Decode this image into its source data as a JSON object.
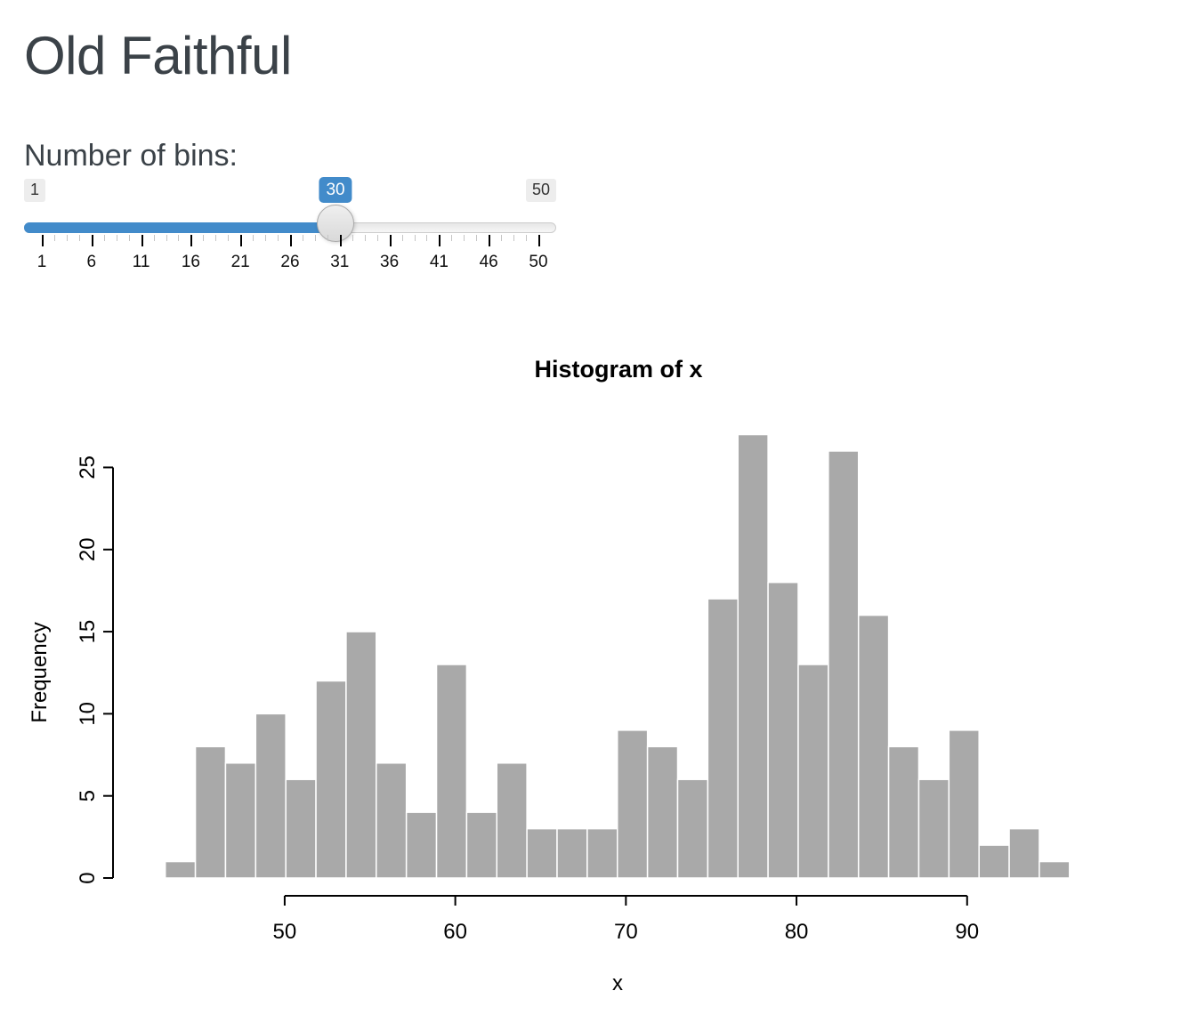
{
  "app": {
    "title": "Old Faithful"
  },
  "slider": {
    "label": "Number of bins:",
    "min": 1,
    "max": 50,
    "value": 30,
    "min_label": "1",
    "max_label": "50",
    "value_label": "30",
    "tick_labels": [
      "1",
      "6",
      "11",
      "16",
      "21",
      "26",
      "31",
      "36",
      "41",
      "46",
      "50"
    ],
    "accent_color": "#428bca"
  },
  "chart_data": {
    "type": "bar",
    "variant": "histogram",
    "title": "Histogram of x",
    "xlabel": "x",
    "ylabel": "Frequency",
    "x_range": [
      43,
      96
    ],
    "n_bins": 30,
    "bin_width": 1.7667,
    "frequencies": [
      1,
      8,
      7,
      10,
      6,
      12,
      15,
      7,
      4,
      13,
      4,
      7,
      3,
      3,
      3,
      9,
      8,
      6,
      17,
      27,
      18,
      13,
      26,
      16,
      8,
      6,
      9,
      2,
      3,
      1
    ],
    "x_ticks": [
      50,
      60,
      70,
      80,
      90
    ],
    "y_ticks": [
      0,
      5,
      10,
      15,
      20,
      25
    ],
    "ylim": [
      0,
      27
    ],
    "grid": false,
    "legend_position": "none",
    "bar_color": "#A9A9A9",
    "bar_border_color": "#FFFFFF",
    "axis_color": "#000000"
  }
}
